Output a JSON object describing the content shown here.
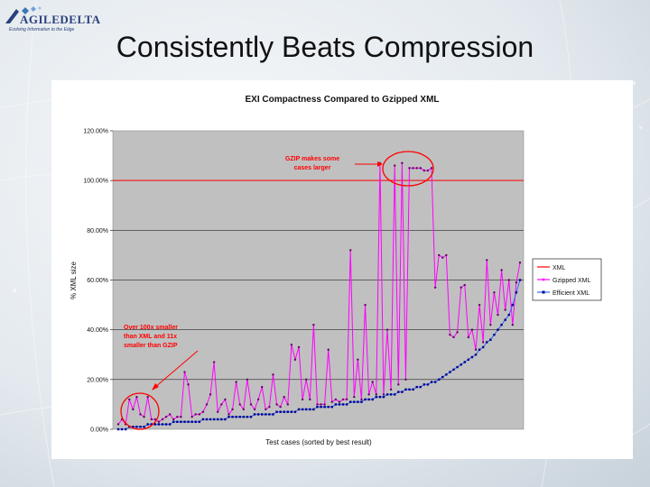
{
  "slide": {
    "title": "Consistently Beats Compression",
    "logo": {
      "wordmark": "AGILEDELTA",
      "tagline": "Evolving Information to the Edge"
    }
  },
  "chart_data": {
    "type": "line",
    "title": "EXI Compactness Compared to Gzipped XML",
    "xlabel": "Test cases (sorted by best result)",
    "ylabel": "% XML size",
    "ylim": [
      0,
      1.2
    ],
    "yticks": [
      "0.00%",
      "20.00%",
      "40.00%",
      "60.00%",
      "80.00%",
      "100.00%",
      "120.00%"
    ],
    "grid": true,
    "legend_position": "right",
    "legend": [
      "XML",
      "Gzipped XML",
      "Efficient XML"
    ],
    "colors": {
      "plot_bg": "#c0c0c0",
      "xml": "#ff0000",
      "gzip": "#ff00ff",
      "efficient": "#00008b",
      "annotation": "#ff0000"
    },
    "series": [
      {
        "name": "XML",
        "values": [
          1.0,
          1.0
        ]
      },
      {
        "name": "Gzipped XML",
        "values": [
          0.02,
          0.04,
          0.02,
          0.12,
          0.08,
          0.13,
          0.06,
          0.05,
          0.13,
          0.04,
          0.04,
          0.03,
          0.04,
          0.05,
          0.06,
          0.04,
          0.05,
          0.05,
          0.23,
          0.18,
          0.05,
          0.06,
          0.06,
          0.07,
          0.1,
          0.14,
          0.27,
          0.07,
          0.1,
          0.12,
          0.06,
          0.08,
          0.19,
          0.1,
          0.08,
          0.2,
          0.1,
          0.08,
          0.12,
          0.17,
          0.08,
          0.09,
          0.22,
          0.1,
          0.09,
          0.13,
          0.1,
          0.34,
          0.28,
          0.33,
          0.12,
          0.2,
          0.12,
          0.42,
          0.1,
          0.1,
          0.1,
          0.32,
          0.11,
          0.12,
          0.11,
          0.12,
          0.12,
          0.72,
          0.13,
          0.28,
          0.12,
          0.5,
          0.14,
          0.19,
          0.14,
          1.07,
          0.14,
          0.4,
          0.16,
          1.06,
          0.18,
          1.07,
          0.2,
          1.05,
          1.05,
          1.05,
          1.05,
          1.04,
          1.04,
          1.05,
          0.57,
          0.7,
          0.69,
          0.7,
          0.38,
          0.37,
          0.39,
          0.57,
          0.58,
          0.37,
          0.4,
          0.32,
          0.5,
          0.35,
          0.68,
          0.42,
          0.55,
          0.46,
          0.64,
          0.48,
          0.6,
          0.42,
          0.59,
          0.67
        ]
      },
      {
        "name": "Efficient XML",
        "values": [
          0.0,
          0.0,
          0.0,
          0.01,
          0.01,
          0.01,
          0.01,
          0.01,
          0.02,
          0.02,
          0.02,
          0.02,
          0.02,
          0.02,
          0.02,
          0.03,
          0.03,
          0.03,
          0.03,
          0.03,
          0.03,
          0.03,
          0.03,
          0.04,
          0.04,
          0.04,
          0.04,
          0.04,
          0.04,
          0.04,
          0.05,
          0.05,
          0.05,
          0.05,
          0.05,
          0.05,
          0.05,
          0.06,
          0.06,
          0.06,
          0.06,
          0.06,
          0.06,
          0.07,
          0.07,
          0.07,
          0.07,
          0.07,
          0.07,
          0.08,
          0.08,
          0.08,
          0.08,
          0.08,
          0.09,
          0.09,
          0.09,
          0.09,
          0.09,
          0.1,
          0.1,
          0.1,
          0.1,
          0.11,
          0.11,
          0.11,
          0.11,
          0.12,
          0.12,
          0.12,
          0.13,
          0.13,
          0.13,
          0.14,
          0.14,
          0.14,
          0.15,
          0.15,
          0.16,
          0.16,
          0.16,
          0.17,
          0.17,
          0.18,
          0.18,
          0.19,
          0.19,
          0.2,
          0.21,
          0.22,
          0.23,
          0.24,
          0.25,
          0.26,
          0.27,
          0.28,
          0.29,
          0.3,
          0.32,
          0.33,
          0.35,
          0.36,
          0.38,
          0.4,
          0.42,
          0.44,
          0.46,
          0.5,
          0.55,
          0.6
        ]
      }
    ],
    "annotations": [
      {
        "text": [
          "GZIP makes some",
          "cases larger"
        ],
        "target": "cases above 100%"
      },
      {
        "text": [
          "Over 100x smaller",
          "than XML and 11x",
          "smaller than GZIP"
        ],
        "target": "first test cases"
      }
    ]
  }
}
